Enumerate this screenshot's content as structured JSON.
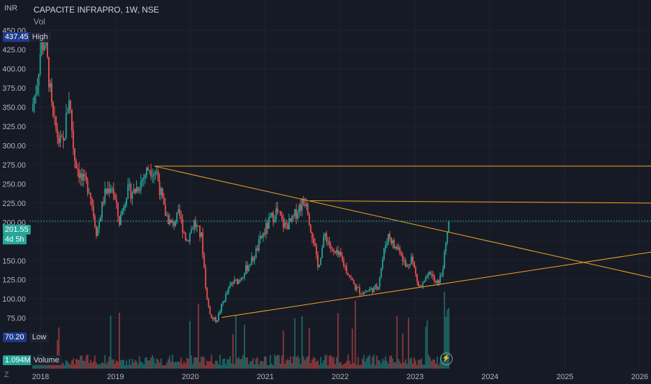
{
  "header": {
    "title": "CAPACITE INFRAPRO, 1W, NSE",
    "volume_label": "Vol",
    "currency": "INR"
  },
  "badges": {
    "high_value": "437.45",
    "high_label": "High",
    "low_value": "70.20",
    "low_label": "Low",
    "volume_value": "1.094M",
    "volume_label": "Volume",
    "last_price": "201.55",
    "countdown": "4d 5h"
  },
  "colors": {
    "background": "#161a25",
    "up": "#26a69a",
    "down": "#ef5350",
    "trendline": "#f5a623"
  },
  "icons": {
    "logo": "tradingview-logo-icon",
    "replay": "lightning-icon"
  },
  "chart_data": {
    "type": "candlestick",
    "title": "CAPACITE INFRAPRO, 1W, NSE",
    "ylabel": "INR",
    "ylim": [
      62,
      455
    ],
    "y_ticks": [
      75,
      100,
      125,
      150,
      175,
      200,
      225,
      250,
      275,
      300,
      325,
      350,
      375,
      400,
      425,
      450
    ],
    "x_ticks": [
      "2018",
      "2019",
      "2020",
      "2021",
      "2022",
      "2023",
      "2024",
      "2025",
      "2026"
    ],
    "x_range_years": [
      2017.85,
      2026.15
    ],
    "price_path": [
      [
        2017.88,
        345
      ],
      [
        2017.95,
        380
      ],
      [
        2018.0,
        425
      ],
      [
        2018.05,
        437.45
      ],
      [
        2018.1,
        400
      ],
      [
        2018.16,
        335
      ],
      [
        2018.25,
        305
      ],
      [
        2018.3,
        300
      ],
      [
        2018.38,
        365
      ],
      [
        2018.45,
        285
      ],
      [
        2018.55,
        255
      ],
      [
        2018.65,
        245
      ],
      [
        2018.75,
        185
      ],
      [
        2018.85,
        235
      ],
      [
        2018.95,
        250
      ],
      [
        2019.05,
        200
      ],
      [
        2019.15,
        240
      ],
      [
        2019.25,
        240
      ],
      [
        2019.35,
        255
      ],
      [
        2019.45,
        272
      ],
      [
        2019.55,
        265
      ],
      [
        2019.65,
        215
      ],
      [
        2019.75,
        195
      ],
      [
        2019.85,
        210
      ],
      [
        2019.95,
        175
      ],
      [
        2020.05,
        200
      ],
      [
        2020.15,
        180
      ],
      [
        2020.22,
        100
      ],
      [
        2020.28,
        75
      ],
      [
        2020.35,
        72
      ],
      [
        2020.45,
        100
      ],
      [
        2020.55,
        120
      ],
      [
        2020.65,
        125
      ],
      [
        2020.75,
        140
      ],
      [
        2020.85,
        155
      ],
      [
        2020.95,
        180
      ],
      [
        2021.05,
        200
      ],
      [
        2021.15,
        215
      ],
      [
        2021.25,
        195
      ],
      [
        2021.35,
        200
      ],
      [
        2021.45,
        220
      ],
      [
        2021.55,
        230
      ],
      [
        2021.6,
        195
      ],
      [
        2021.65,
        175
      ],
      [
        2021.7,
        140
      ],
      [
        2021.8,
        185
      ],
      [
        2021.9,
        160
      ],
      [
        2022.0,
        155
      ],
      [
        2022.1,
        135
      ],
      [
        2022.2,
        115
      ],
      [
        2022.3,
        108
      ],
      [
        2022.4,
        112
      ],
      [
        2022.5,
        115
      ],
      [
        2022.6,
        170
      ],
      [
        2022.65,
        185
      ],
      [
        2022.72,
        168
      ],
      [
        2022.8,
        165
      ],
      [
        2022.88,
        140
      ],
      [
        2022.95,
        155
      ],
      [
        2023.05,
        115
      ],
      [
        2023.12,
        120
      ],
      [
        2023.2,
        135
      ],
      [
        2023.28,
        118
      ],
      [
        2023.35,
        130
      ],
      [
        2023.4,
        160
      ],
      [
        2023.45,
        201.55
      ]
    ],
    "last_price": 201.55,
    "high": 437.45,
    "low": 70.2,
    "volume_ylim": [
      0,
      3.5
    ],
    "trendlines": [
      {
        "from": [
          2019.52,
          273
        ],
        "to": [
          2026.15,
          273
        ]
      },
      {
        "from": [
          2021.6,
          228
        ],
        "to": [
          2026.15,
          225
        ]
      },
      {
        "from": [
          2019.52,
          273
        ],
        "to": [
          2026.15,
          128
        ]
      },
      {
        "from": [
          2020.42,
          76
        ],
        "to": [
          2026.15,
          161
        ]
      }
    ]
  }
}
